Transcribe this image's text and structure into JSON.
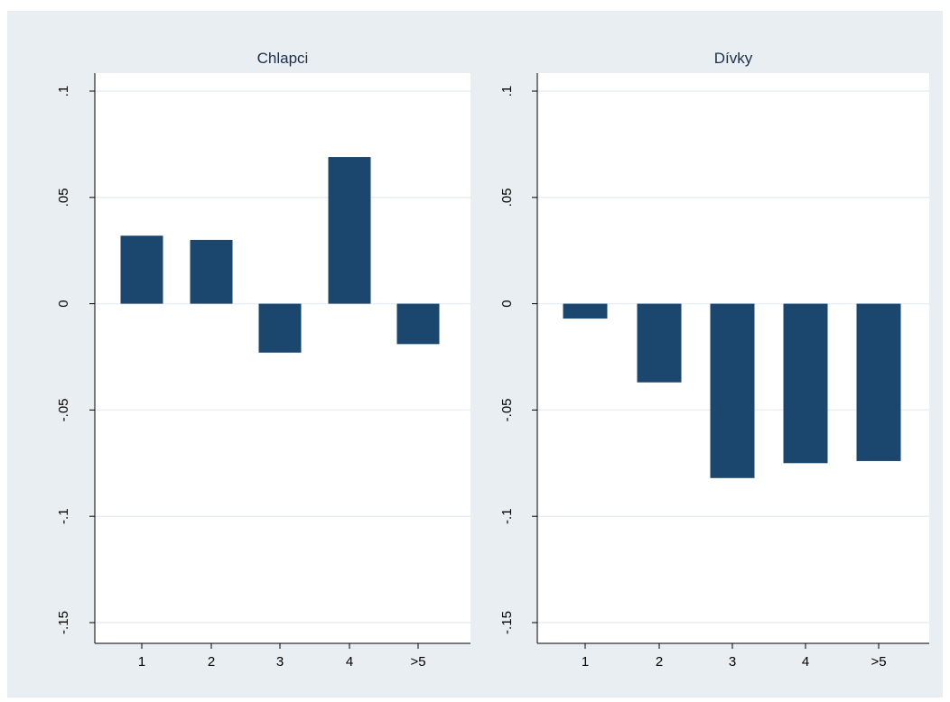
{
  "colors": {
    "outer_background": "#e8eef2",
    "plot_background": "#ffffff",
    "bar": "#1b466e",
    "grid": "#e8eef2",
    "axis": "#000000",
    "title_text": "#1b2f4a"
  },
  "chart_data": [
    {
      "type": "bar",
      "title": "Chlapci",
      "categories": [
        "1",
        "2",
        "3",
        "4",
        ">5"
      ],
      "values": [
        0.032,
        0.03,
        -0.023,
        0.069,
        -0.019
      ],
      "ylim": [
        -0.155,
        0.1
      ],
      "yticks": [
        0.1,
        0.05,
        0,
        -0.05,
        -0.1,
        -0.15
      ],
      "ytick_labels": [
        ".1",
        ".05",
        "0",
        "-.05",
        "-.1",
        "-.15"
      ],
      "xlabel": "",
      "ylabel": "",
      "grid": true,
      "legend": "none"
    },
    {
      "type": "bar",
      "title": "Dívky",
      "categories": [
        "1",
        "2",
        "3",
        "4",
        ">5"
      ],
      "values": [
        -0.007,
        -0.037,
        -0.082,
        -0.075,
        -0.074
      ],
      "ylim": [
        -0.155,
        0.1
      ],
      "yticks": [
        0.1,
        0.05,
        0,
        -0.05,
        -0.1,
        -0.15
      ],
      "ytick_labels": [
        ".1",
        ".05",
        "0",
        "-.05",
        "-.1",
        "-.15"
      ],
      "xlabel": "",
      "ylabel": "",
      "grid": true,
      "legend": "none"
    }
  ]
}
